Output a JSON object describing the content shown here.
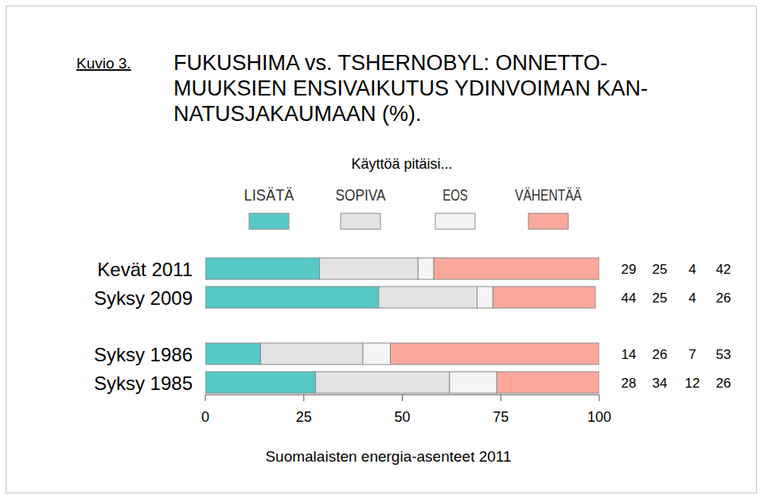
{
  "chart_data": {
    "type": "bar",
    "orientation": "horizontal",
    "stacked": true,
    "figure_label": "Kuvio 3.",
    "title": "FUKUSHIMA vs. TSHERNOBYL: ONNETTO-\nMUUKSIEN ENSIVAIKUTUS YDINVOIMAN KAN-\nNATUSJAKAUMAAN (%).",
    "legend_title": "Käyttöä pitäisi...",
    "source": "Suomalaisten energia-asenteet 2011",
    "categories": [
      "Kevät 2011",
      "Syksy 2009",
      "Syksy 1986",
      "Syksy 1985"
    ],
    "series": [
      {
        "name": "LISÄTÄ",
        "color": "#56c9c6",
        "values": [
          29,
          44,
          14,
          28
        ]
      },
      {
        "name": "SOPIVA",
        "color": "#e3e3e3",
        "values": [
          25,
          25,
          26,
          34
        ]
      },
      {
        "name": "EOS",
        "color": "#f4f4f4",
        "values": [
          4,
          4,
          7,
          12
        ]
      },
      {
        "name": "VÄHENTÄÄ",
        "color": "#fba89c",
        "values": [
          42,
          26,
          53,
          26
        ]
      }
    ],
    "xlim": [
      0,
      100
    ],
    "xticks": [
      0,
      25,
      50,
      75,
      100
    ],
    "grid": false,
    "legend": "top",
    "data_labels": true
  }
}
